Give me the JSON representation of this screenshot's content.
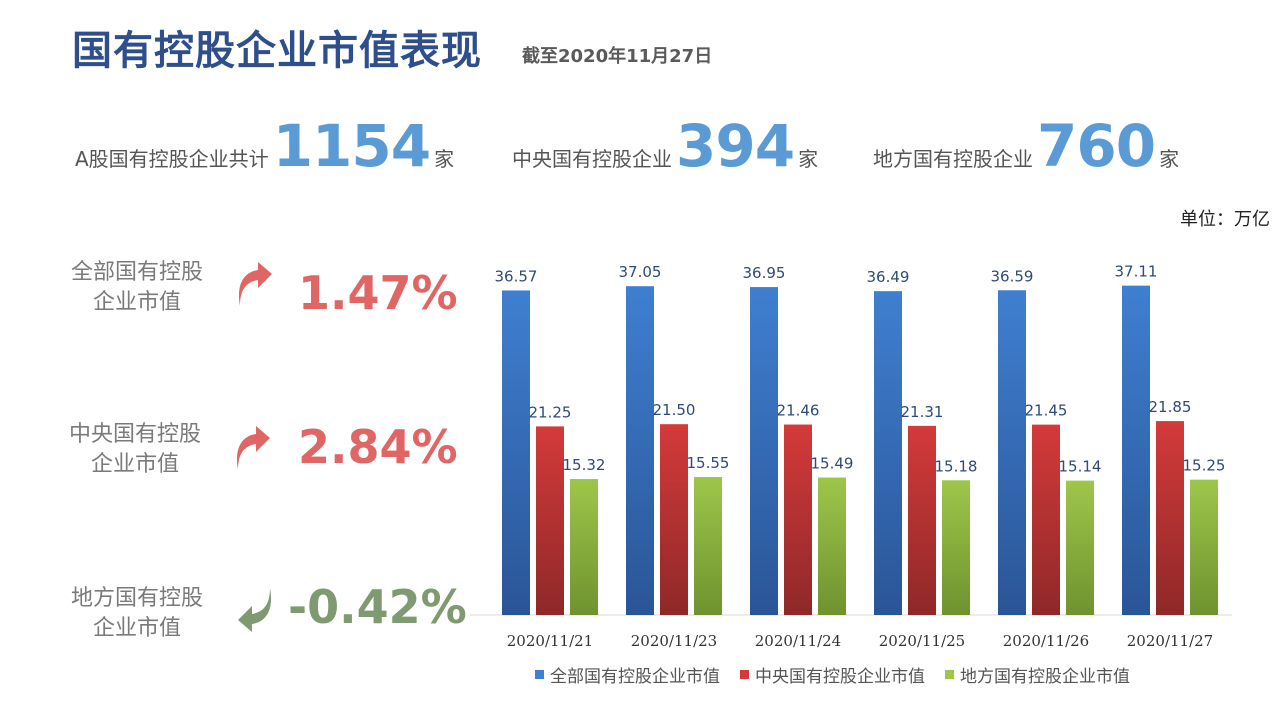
{
  "header": {
    "title": "国有控股企业市值表现",
    "subtitle": "截至2020年11月27日"
  },
  "stats": [
    {
      "label": "A股国有控股企业共计",
      "value": "1154",
      "unit": "家"
    },
    {
      "label": "中央国有控股企业",
      "value": "394",
      "unit": "家"
    },
    {
      "label": "地方国有控股企业",
      "value": "760",
      "unit": "家"
    }
  ],
  "unit_label": "单位：万亿",
  "metrics": [
    {
      "label_line1": "全部国有控股",
      "label_line2": "企业市值",
      "value": "1.47%",
      "direction": "up",
      "color": "#e06666"
    },
    {
      "label_line1": "中央国有控股",
      "label_line2": "企业市值",
      "value": "2.84%",
      "direction": "up",
      "color": "#e06666"
    },
    {
      "label_line1": "地方国有控股",
      "label_line2": "企业市值",
      "value": "-0.42%",
      "direction": "down",
      "color": "#7f9970"
    }
  ],
  "chart_data": {
    "type": "bar",
    "categories": [
      "2020/11/21",
      "2020/11/23",
      "2020/11/24",
      "2020/11/25",
      "2020/11/26",
      "2020/11/27"
    ],
    "series": [
      {
        "name": "全部国有控股企业市值",
        "values": [
          36.57,
          37.05,
          36.95,
          36.49,
          36.59,
          37.11
        ],
        "color_top": "#3f7fd0",
        "color_bottom": "#2a5597"
      },
      {
        "name": "中央国有控股企业市值",
        "values": [
          21.25,
          21.5,
          21.46,
          21.31,
          21.45,
          21.85
        ],
        "color_top": "#d43a3a",
        "color_bottom": "#8f2828"
      },
      {
        "name": "地方国有控股企业市值",
        "values": [
          15.32,
          15.55,
          15.49,
          15.18,
          15.14,
          15.25
        ],
        "color_top": "#9ec64a",
        "color_bottom": "#6f922f"
      }
    ],
    "ylim": [
      0,
      40
    ],
    "legend": "bottom",
    "grid": false
  }
}
